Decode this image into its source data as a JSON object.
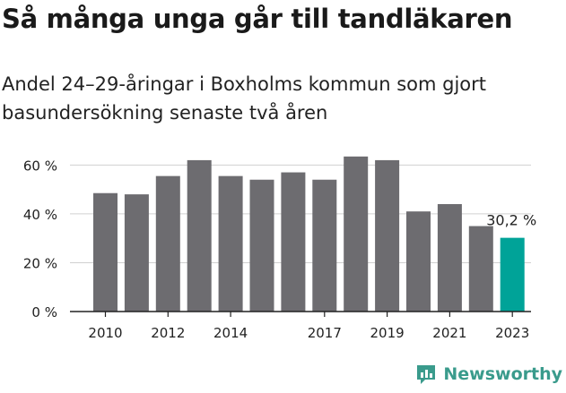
{
  "title": "Så många unga går till tandläkaren",
  "subtitle": "Andel 24–29-åringar i Boxholms kommun som gjort basundersökning senaste två åren",
  "brand": {
    "name": "Newsworthy",
    "icon": "newsworthy-logo-icon"
  },
  "colors": {
    "bar": "#6d6c70",
    "highlight": "#00a398",
    "axis": "#222222",
    "grid": "#d0d0d0",
    "brand": "#3a9b8c"
  },
  "chart_data": {
    "type": "bar",
    "title": "Så många unga går till tandläkaren",
    "xlabel": "",
    "ylabel": "",
    "categories": [
      "2010",
      "2011",
      "2012",
      "2013",
      "2014",
      "2015",
      "2016",
      "2017",
      "2018",
      "2019",
      "2020",
      "2021",
      "2022",
      "2023"
    ],
    "values": [
      48.5,
      48,
      55.5,
      62,
      55.5,
      54,
      57,
      54,
      63.5,
      62,
      41,
      44,
      35,
      30.2
    ],
    "x_tick_labels": [
      "2010",
      "2012",
      "2014",
      "2017",
      "2019",
      "2021",
      "2023"
    ],
    "y_ticks": [
      0,
      20,
      40,
      60
    ],
    "y_tick_labels": [
      "0 %",
      "20 %",
      "40 %",
      "60 %"
    ],
    "ylim": [
      0,
      66
    ],
    "highlight_index": 13,
    "highlight_label": "30,2 %",
    "grid": true
  }
}
